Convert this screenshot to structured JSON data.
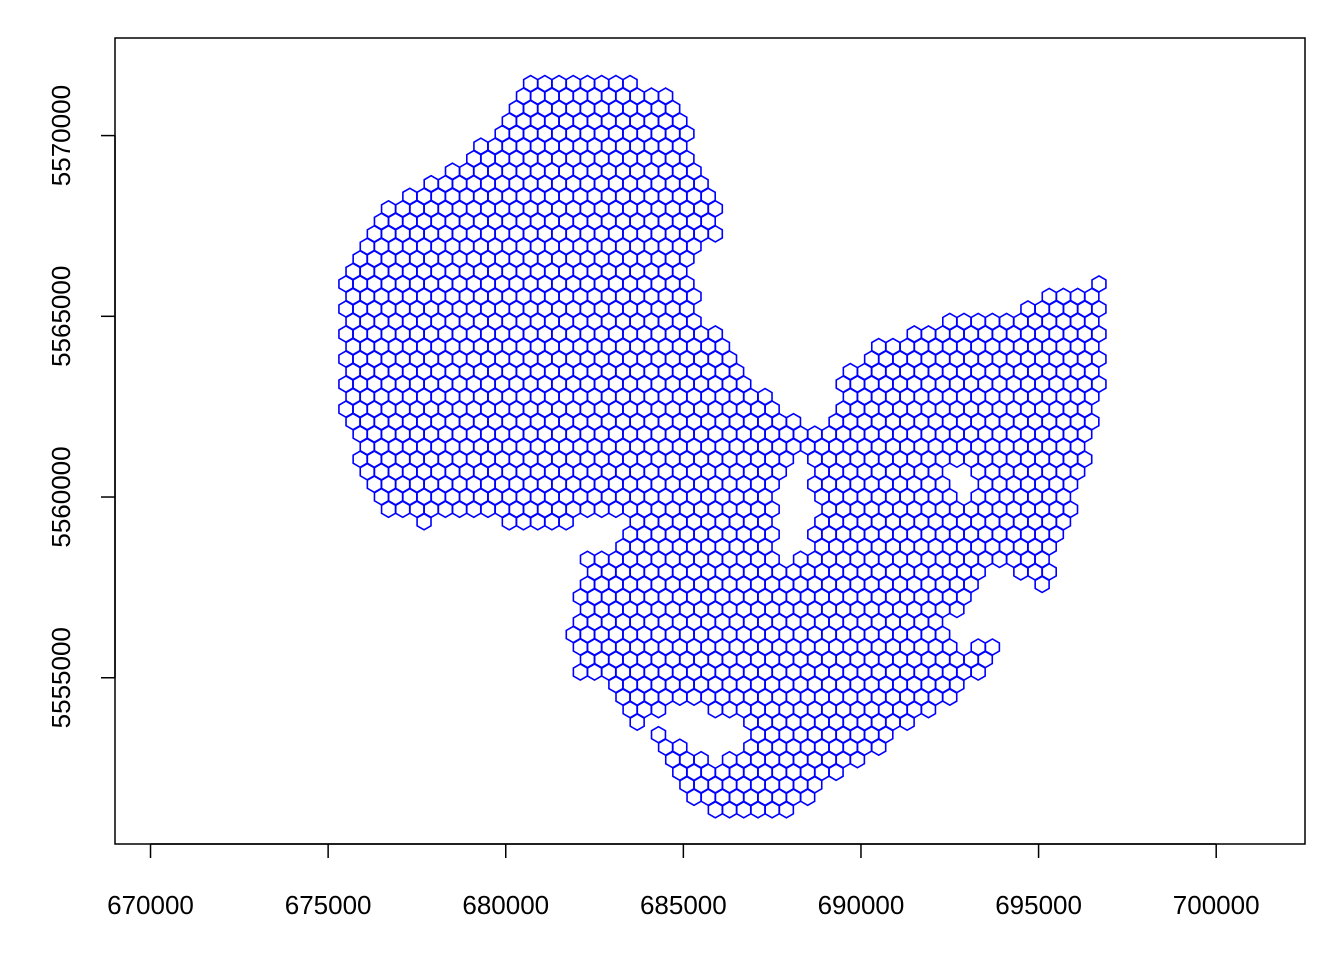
{
  "chart_data": {
    "type": "scatter",
    "marker": "hexagon-outline",
    "title": "",
    "xlabel": "",
    "ylabel": "",
    "xlim": [
      669000,
      702500
    ],
    "ylim": [
      5550400,
      5572700
    ],
    "x_ticks": [
      670000,
      675000,
      680000,
      685000,
      690000,
      695000,
      700000
    ],
    "x_tick_labels": [
      "670000",
      "675000",
      "680000",
      "685000",
      "690000",
      "695000",
      "700000"
    ],
    "y_ticks": [
      5555000,
      5560000,
      5565000,
      5570000
    ],
    "y_tick_labels": [
      "5555000",
      "5560000",
      "5565000",
      "5570000"
    ],
    "grid": false,
    "legend": "none",
    "colors": {
      "marker": "#0000ff",
      "axes": "#000000",
      "background": "#ffffff"
    },
    "hex_spacing": 400,
    "region": {
      "outline": [
        [
          680600,
          5571600
        ],
        [
          681600,
          5571600
        ],
        [
          683500,
          5571500
        ],
        [
          684800,
          5571200
        ],
        [
          685300,
          5569500
        ],
        [
          686000,
          5568200
        ],
        [
          686000,
          5567300
        ],
        [
          685000,
          5566300
        ],
        [
          685600,
          5564900
        ],
        [
          686400,
          5564000
        ],
        [
          686900,
          5563200
        ],
        [
          687800,
          5562500
        ],
        [
          688600,
          5561700
        ],
        [
          689200,
          5562000
        ],
        [
          689600,
          5563500
        ],
        [
          690800,
          5564400
        ],
        [
          692500,
          5564900
        ],
        [
          694400,
          5565000
        ],
        [
          695300,
          5565800
        ],
        [
          696700,
          5565900
        ],
        [
          696900,
          5563900
        ],
        [
          696500,
          5561400
        ],
        [
          695900,
          5559500
        ],
        [
          695300,
          5557700
        ],
        [
          694000,
          5556800
        ],
        [
          693600,
          5555400
        ],
        [
          692500,
          5554400
        ],
        [
          689800,
          5552600
        ],
        [
          688200,
          5551400
        ],
        [
          686900,
          5551000
        ],
        [
          685700,
          5551100
        ],
        [
          684900,
          5552200
        ],
        [
          683800,
          5553600
        ],
        [
          683000,
          5554800
        ],
        [
          682000,
          5555100
        ],
        [
          681800,
          5556400
        ],
        [
          682300,
          5558300
        ],
        [
          683200,
          5558500
        ],
        [
          683400,
          5559700
        ],
        [
          682200,
          5559400
        ],
        [
          681400,
          5559200
        ],
        [
          679800,
          5559200
        ],
        [
          679700,
          5559600
        ],
        [
          678600,
          5559500
        ],
        [
          677600,
          5559200
        ],
        [
          676500,
          5559700
        ],
        [
          675900,
          5561000
        ],
        [
          675400,
          5562400
        ],
        [
          675300,
          5564800
        ],
        [
          675600,
          5566700
        ],
        [
          676500,
          5567900
        ],
        [
          677700,
          5568800
        ],
        [
          679100,
          5569500
        ],
        [
          679900,
          5570500
        ]
      ],
      "holes": [
        [
          [
            687600,
            5558200
          ],
          [
            688500,
            5558400
          ],
          [
            688800,
            5559500
          ],
          [
            688400,
            5561200
          ],
          [
            687700,
            5560500
          ]
        ],
        [
          [
            692300,
            5560100
          ],
          [
            692800,
            5559900
          ],
          [
            693400,
            5560300
          ],
          [
            692900,
            5561000
          ],
          [
            692500,
            5560800
          ]
        ],
        [
          [
            692900,
            5555700
          ],
          [
            694300,
            5556600
          ],
          [
            694800,
            5557500
          ],
          [
            694100,
            5558400
          ],
          [
            693200,
            5557500
          ],
          [
            692400,
            5556500
          ]
        ],
        [
          [
            683700,
            5553800
          ],
          [
            685800,
            5552700
          ],
          [
            686900,
            5553000
          ],
          [
            686600,
            5553800
          ],
          [
            685200,
            5554300
          ]
        ]
      ]
    }
  }
}
